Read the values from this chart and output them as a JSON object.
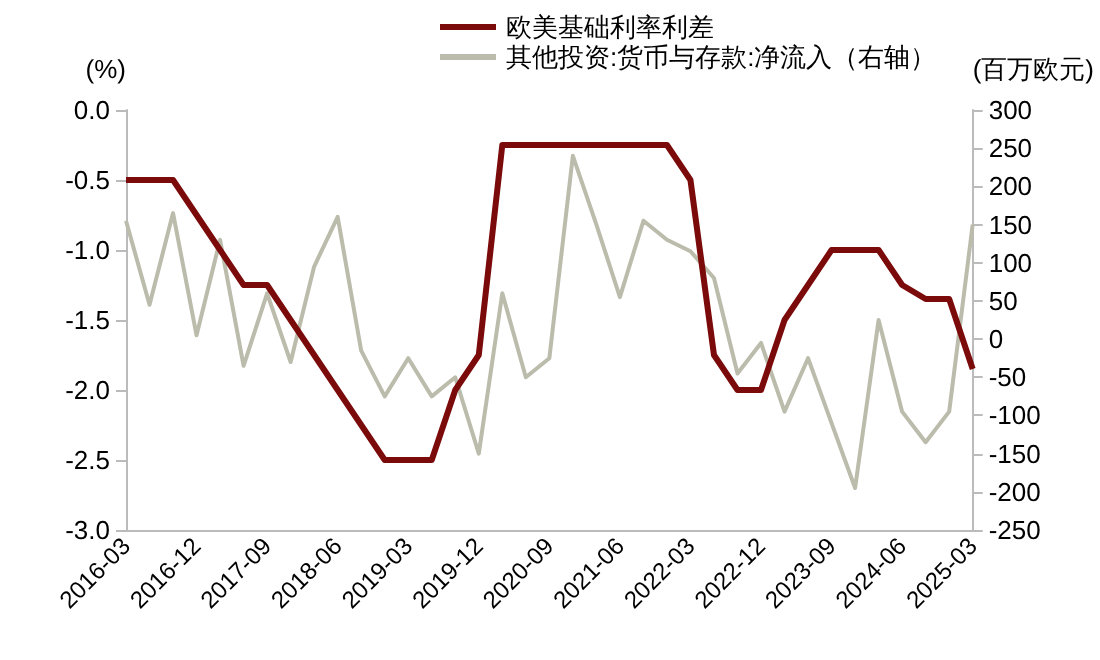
{
  "chart_data": {
    "type": "line",
    "categories": [
      "2016-03",
      null,
      null,
      "2016-12",
      null,
      null,
      "2017-09",
      null,
      null,
      "2018-06",
      null,
      null,
      "2019-03",
      null,
      null,
      "2019-12",
      null,
      null,
      "2020-09",
      null,
      null,
      "2021-06",
      null,
      null,
      "2022-03",
      null,
      null,
      "2022-12",
      null,
      null,
      "2023-09",
      null,
      null,
      "2024-06",
      null,
      null,
      "2025-03"
    ],
    "ylabel": "(%)",
    "y2label": "(百万欧元)",
    "series": [
      {
        "name": "欧美基础利率利差",
        "color": "#7b0a0a",
        "values": [
          -0.5,
          -0.5,
          -0.5,
          -0.75,
          -1.0,
          -1.25,
          -1.25,
          -1.5,
          -1.75,
          -2.0,
          -2.25,
          -2.5,
          -2.5,
          -2.5,
          -2.0,
          -1.75,
          -0.25,
          -0.25,
          -0.25,
          -0.25,
          -0.25,
          -0.25,
          -0.25,
          -0.25,
          -0.5,
          -1.75,
          -2.0,
          -2.0,
          -1.5,
          -1.25,
          -1.0,
          -1.0,
          -1.0,
          -1.25,
          -1.35,
          -1.35,
          -1.85
        ]
      },
      {
        "name": "其他投资:货币与存款:净流入（右轴）",
        "color": "#bcbcac",
        "axis": "y2",
        "values": [
          155,
          45,
          165,
          5,
          130,
          -35,
          60,
          -30,
          95,
          160,
          -15,
          -75,
          -25,
          -75,
          -50,
          -150,
          60,
          -50,
          -25,
          240,
          150,
          55,
          155,
          130,
          115,
          80,
          -45,
          -5,
          -95,
          -25,
          -110,
          -195,
          25,
          -95,
          -135,
          -95,
          150
        ]
      }
    ],
    "ylim": [
      -3.0,
      0.0
    ],
    "yticks": [
      {
        "value": -3.0,
        "label": "-3.0"
      },
      {
        "value": -2.5,
        "label": "-2.5"
      },
      {
        "value": -2.0,
        "label": "-2.0"
      },
      {
        "value": -1.5,
        "label": "-1.5"
      },
      {
        "value": -1.0,
        "label": "-1.0"
      },
      {
        "value": -0.5,
        "label": "-0.5"
      },
      {
        "value": 0.0,
        "label": "0.0"
      }
    ],
    "y2lim": [
      -250,
      300
    ],
    "y2ticks": [
      -250,
      -200,
      -150,
      -100,
      -50,
      0,
      50,
      100,
      150,
      200,
      250,
      300
    ],
    "legend": "top",
    "marker": "none",
    "line_style": "solid"
  }
}
